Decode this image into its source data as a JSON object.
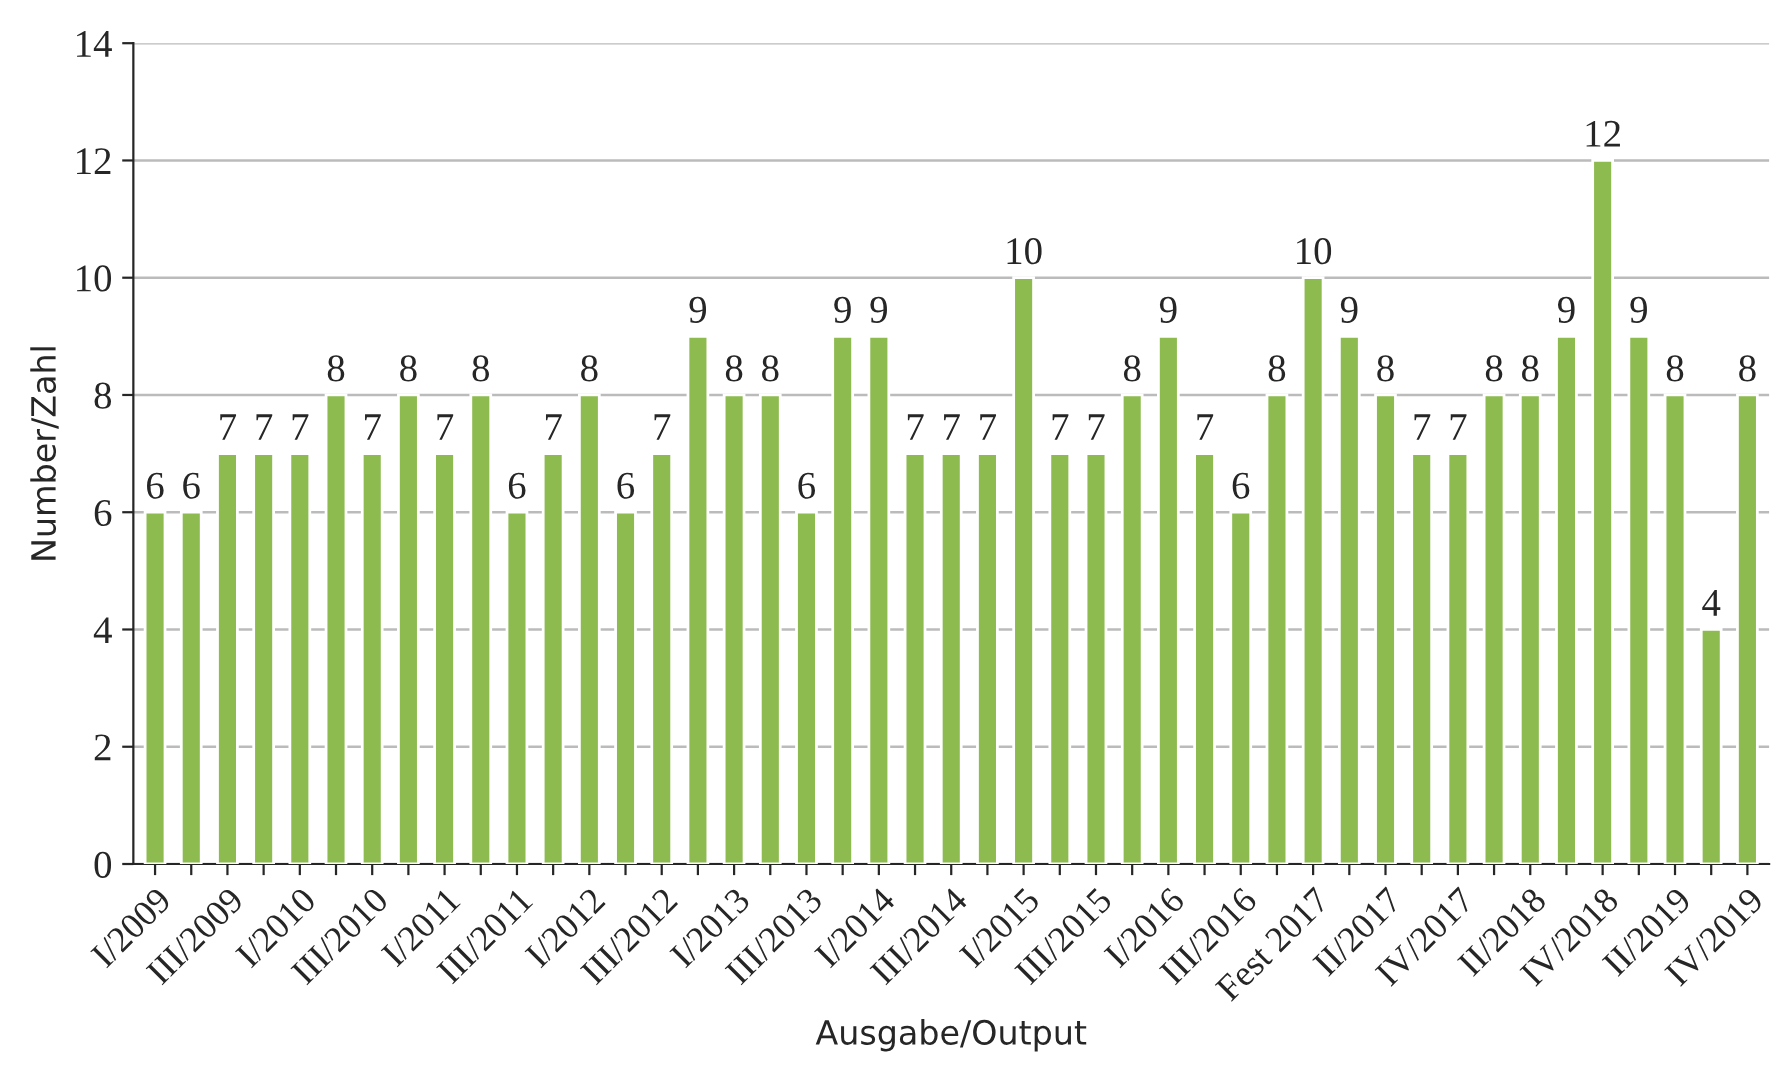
{
  "chart_data": {
    "type": "bar",
    "xlabel": "Ausgabe/Output",
    "ylabel": "Number/Zahl",
    "categories": [
      "I/2009",
      null,
      "III/2009",
      null,
      "I/2010",
      null,
      "III/2010",
      null,
      "I/2011",
      null,
      "III/2011",
      null,
      "I/2012",
      null,
      "III/2012",
      null,
      "I/2013",
      null,
      "III/2013",
      null,
      "I/2014",
      null,
      "III/2014",
      null,
      "I/2015",
      null,
      "III/2015",
      null,
      "I/2016",
      null,
      "III/2016",
      null,
      "Fest 2017",
      null,
      "II/2017",
      null,
      "IV/2017",
      null,
      "II/2018",
      null,
      "IV/2018",
      null,
      "II/2019",
      null,
      "IV/2019"
    ],
    "values": [
      6,
      6,
      7,
      7,
      7,
      8,
      7,
      8,
      7,
      8,
      6,
      7,
      8,
      6,
      7,
      9,
      8,
      8,
      6,
      9,
      9,
      7,
      7,
      7,
      10,
      7,
      7,
      8,
      9,
      7,
      6,
      8,
      10,
      9,
      8,
      7,
      7,
      8,
      8,
      9,
      12,
      9,
      8,
      4,
      8
    ],
    "color": "#8dbb4f",
    "ylim": [
      0,
      14
    ],
    "yticks": [
      0,
      2,
      4,
      6,
      8,
      10,
      12,
      14
    ],
    "grid": "y",
    "data_labels": true
  }
}
